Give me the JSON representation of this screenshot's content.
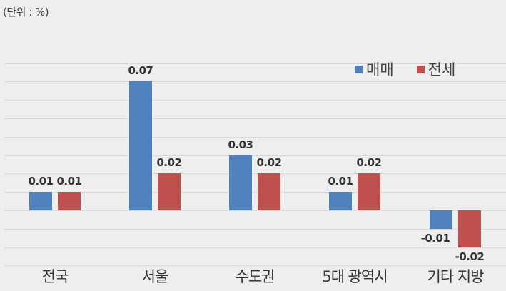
{
  "unit_label": "(단위 : %)",
  "legend": [
    {
      "label": "매매",
      "color": "#4f81bd"
    },
    {
      "label": "전세",
      "color": "#c0504d"
    }
  ],
  "chart_data": {
    "type": "bar",
    "title": "",
    "unit": "(단위 : %)",
    "xlabel": "",
    "ylabel": "",
    "categories": [
      "전국",
      "서울",
      "수도권",
      "5대 광역시",
      "기타 지방"
    ],
    "series": [
      {
        "name": "매매",
        "color": "#4f81bd",
        "values": [
          0.01,
          0.07,
          0.03,
          0.01,
          -0.01
        ]
      },
      {
        "name": "전세",
        "color": "#c0504d",
        "values": [
          0.01,
          0.02,
          0.02,
          0.02,
          -0.02
        ]
      }
    ],
    "value_labels": {
      "매매": [
        "0.01",
        "0.07",
        "0.03",
        "0.01",
        "-0.01"
      ],
      "전세": [
        "0.01",
        "0.02",
        "0.02",
        "0.02",
        "-0.02"
      ]
    },
    "ylim": [
      -0.03,
      0.08
    ],
    "grid": true,
    "legend_position": "top-right"
  }
}
